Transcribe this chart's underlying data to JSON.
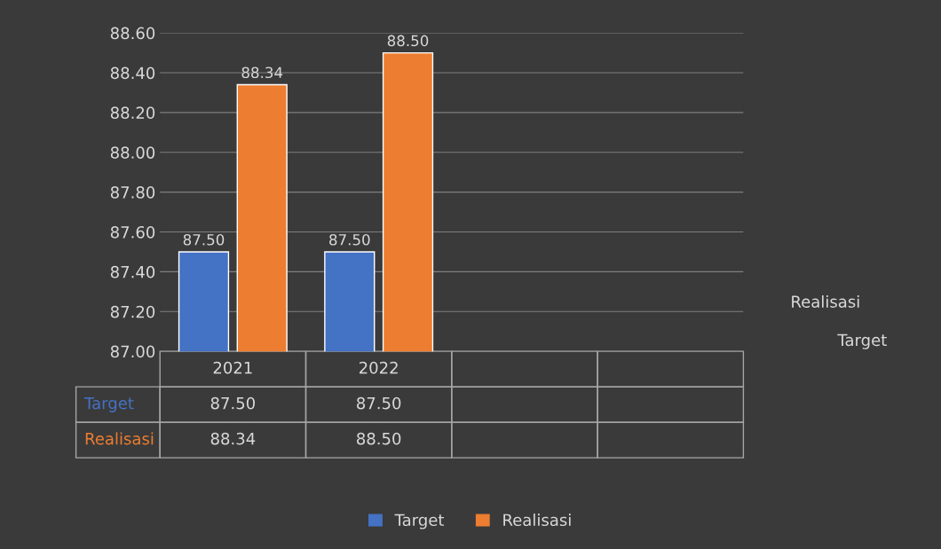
{
  "chart_data": {
    "type": "bar",
    "categories": [
      "2021",
      "2022",
      null,
      null
    ],
    "series": [
      {
        "name": "Target",
        "color": "#4472c4",
        "values": [
          87.5,
          87.5,
          null,
          null
        ],
        "value_labels": [
          "87.50",
          "87.50",
          null,
          null
        ]
      },
      {
        "name": "Realisasi",
        "color": "#ed7d31",
        "values": [
          88.34,
          88.5,
          null,
          null
        ],
        "value_labels": [
          "88.34",
          "88.50",
          null,
          null
        ]
      }
    ],
    "ylim": [
      87.0,
      88.6
    ],
    "yticks": [
      {
        "value": 87.0,
        "label": "87.00"
      },
      {
        "value": 87.2,
        "label": "87.20"
      },
      {
        "value": 87.4,
        "label": "87.40"
      },
      {
        "value": 87.6,
        "label": "87.60"
      },
      {
        "value": 87.8,
        "label": "87.80"
      },
      {
        "value": 88.0,
        "label": "88.00"
      },
      {
        "value": 88.2,
        "label": "88.20"
      },
      {
        "value": 88.4,
        "label": "88.40"
      },
      {
        "value": 88.6,
        "label": "88.60"
      }
    ],
    "grid": "y",
    "legend": "bottom"
  }
}
